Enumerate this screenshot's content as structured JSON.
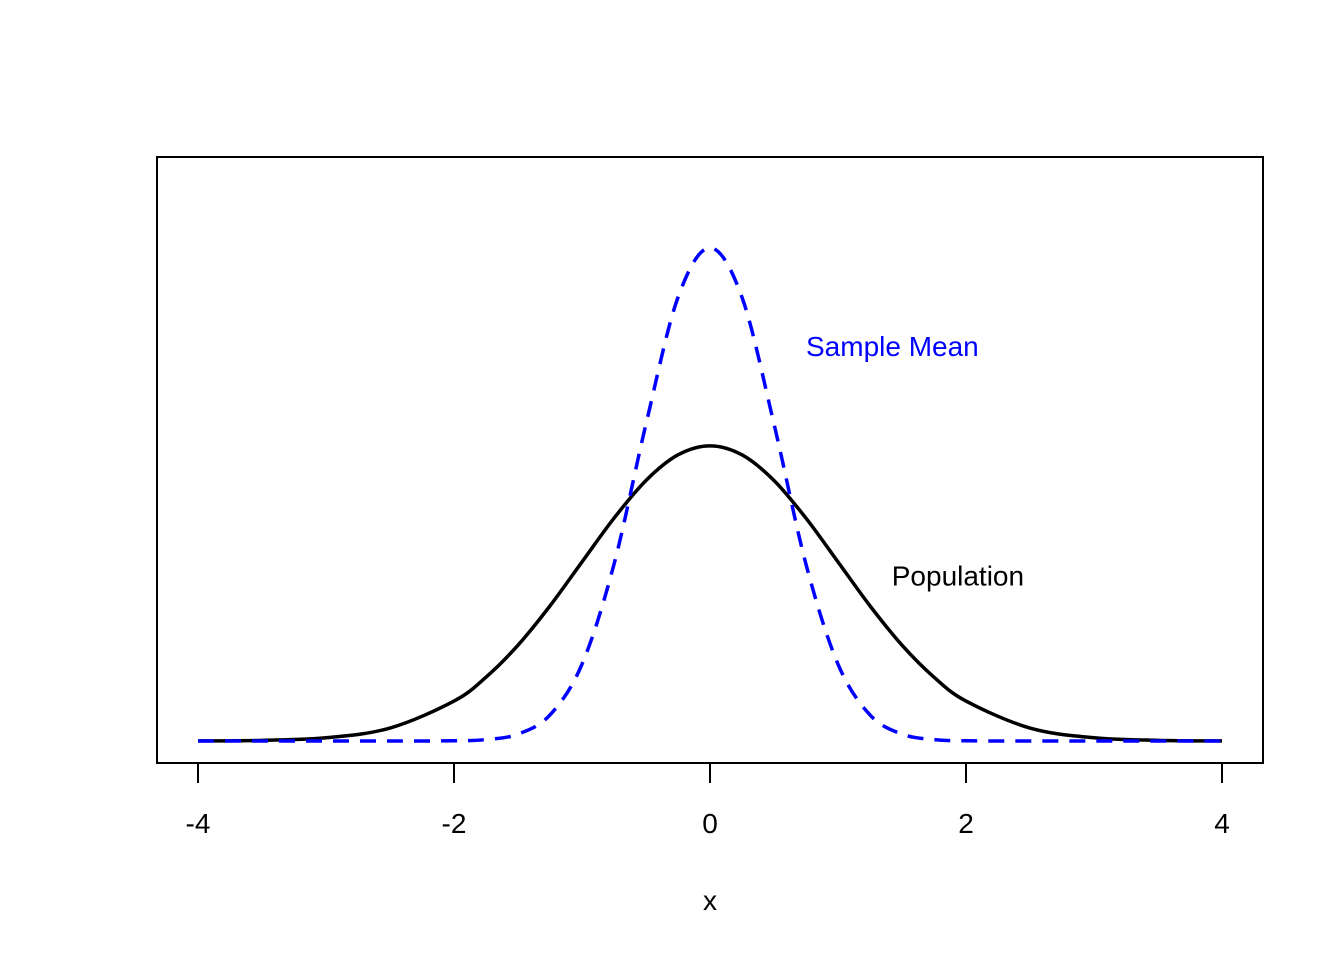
{
  "chart_data": {
    "type": "line",
    "title": "",
    "xlabel": "x",
    "ylabel": "",
    "xlim": [
      -4,
      4
    ],
    "ylim": [
      0,
      0.9
    ],
    "xticks": [
      -4,
      -2,
      0,
      2,
      4
    ],
    "xtick_labels": [
      "-4",
      "-2",
      "0",
      "2",
      "4"
    ],
    "grid": false,
    "x": [
      -4,
      -3.5,
      -3,
      -2.5,
      -2,
      -1.75,
      -1.5,
      -1.25,
      -1,
      -0.75,
      -0.5,
      -0.25,
      0,
      0.25,
      0.5,
      0.75,
      1,
      1.25,
      1.5,
      1.75,
      2,
      2.5,
      3,
      3.5,
      4
    ],
    "series": [
      {
        "name": "Population",
        "color": "#000000",
        "dash": "solid",
        "values": [
          0.0001,
          0.0009,
          0.0044,
          0.0175,
          0.054,
          0.0863,
          0.1295,
          0.1826,
          0.242,
          0.3011,
          0.3521,
          0.3867,
          0.3989,
          0.3867,
          0.3521,
          0.3011,
          0.242,
          0.1826,
          0.1295,
          0.0863,
          0.054,
          0.0175,
          0.0044,
          0.0009,
          0.0001
        ]
      },
      {
        "name": "Sample Mean",
        "color": "#0000ff",
        "dash": "dashed",
        "values": [
          0,
          0,
          0,
          0,
          0.0003,
          0.0019,
          0.0093,
          0.0352,
          0.1038,
          0.2388,
          0.4284,
          0.5995,
          0.6664,
          0.5995,
          0.4284,
          0.2388,
          0.1038,
          0.0352,
          0.0093,
          0.0019,
          0.0003,
          0,
          0,
          0,
          0
        ]
      }
    ],
    "annotations": [
      {
        "text": "Sample Mean",
        "x": 0.75,
        "y": 0.52,
        "color": "#0000ff"
      },
      {
        "text": "Population",
        "x": 1.42,
        "y": 0.21,
        "color": "#000000"
      }
    ]
  }
}
